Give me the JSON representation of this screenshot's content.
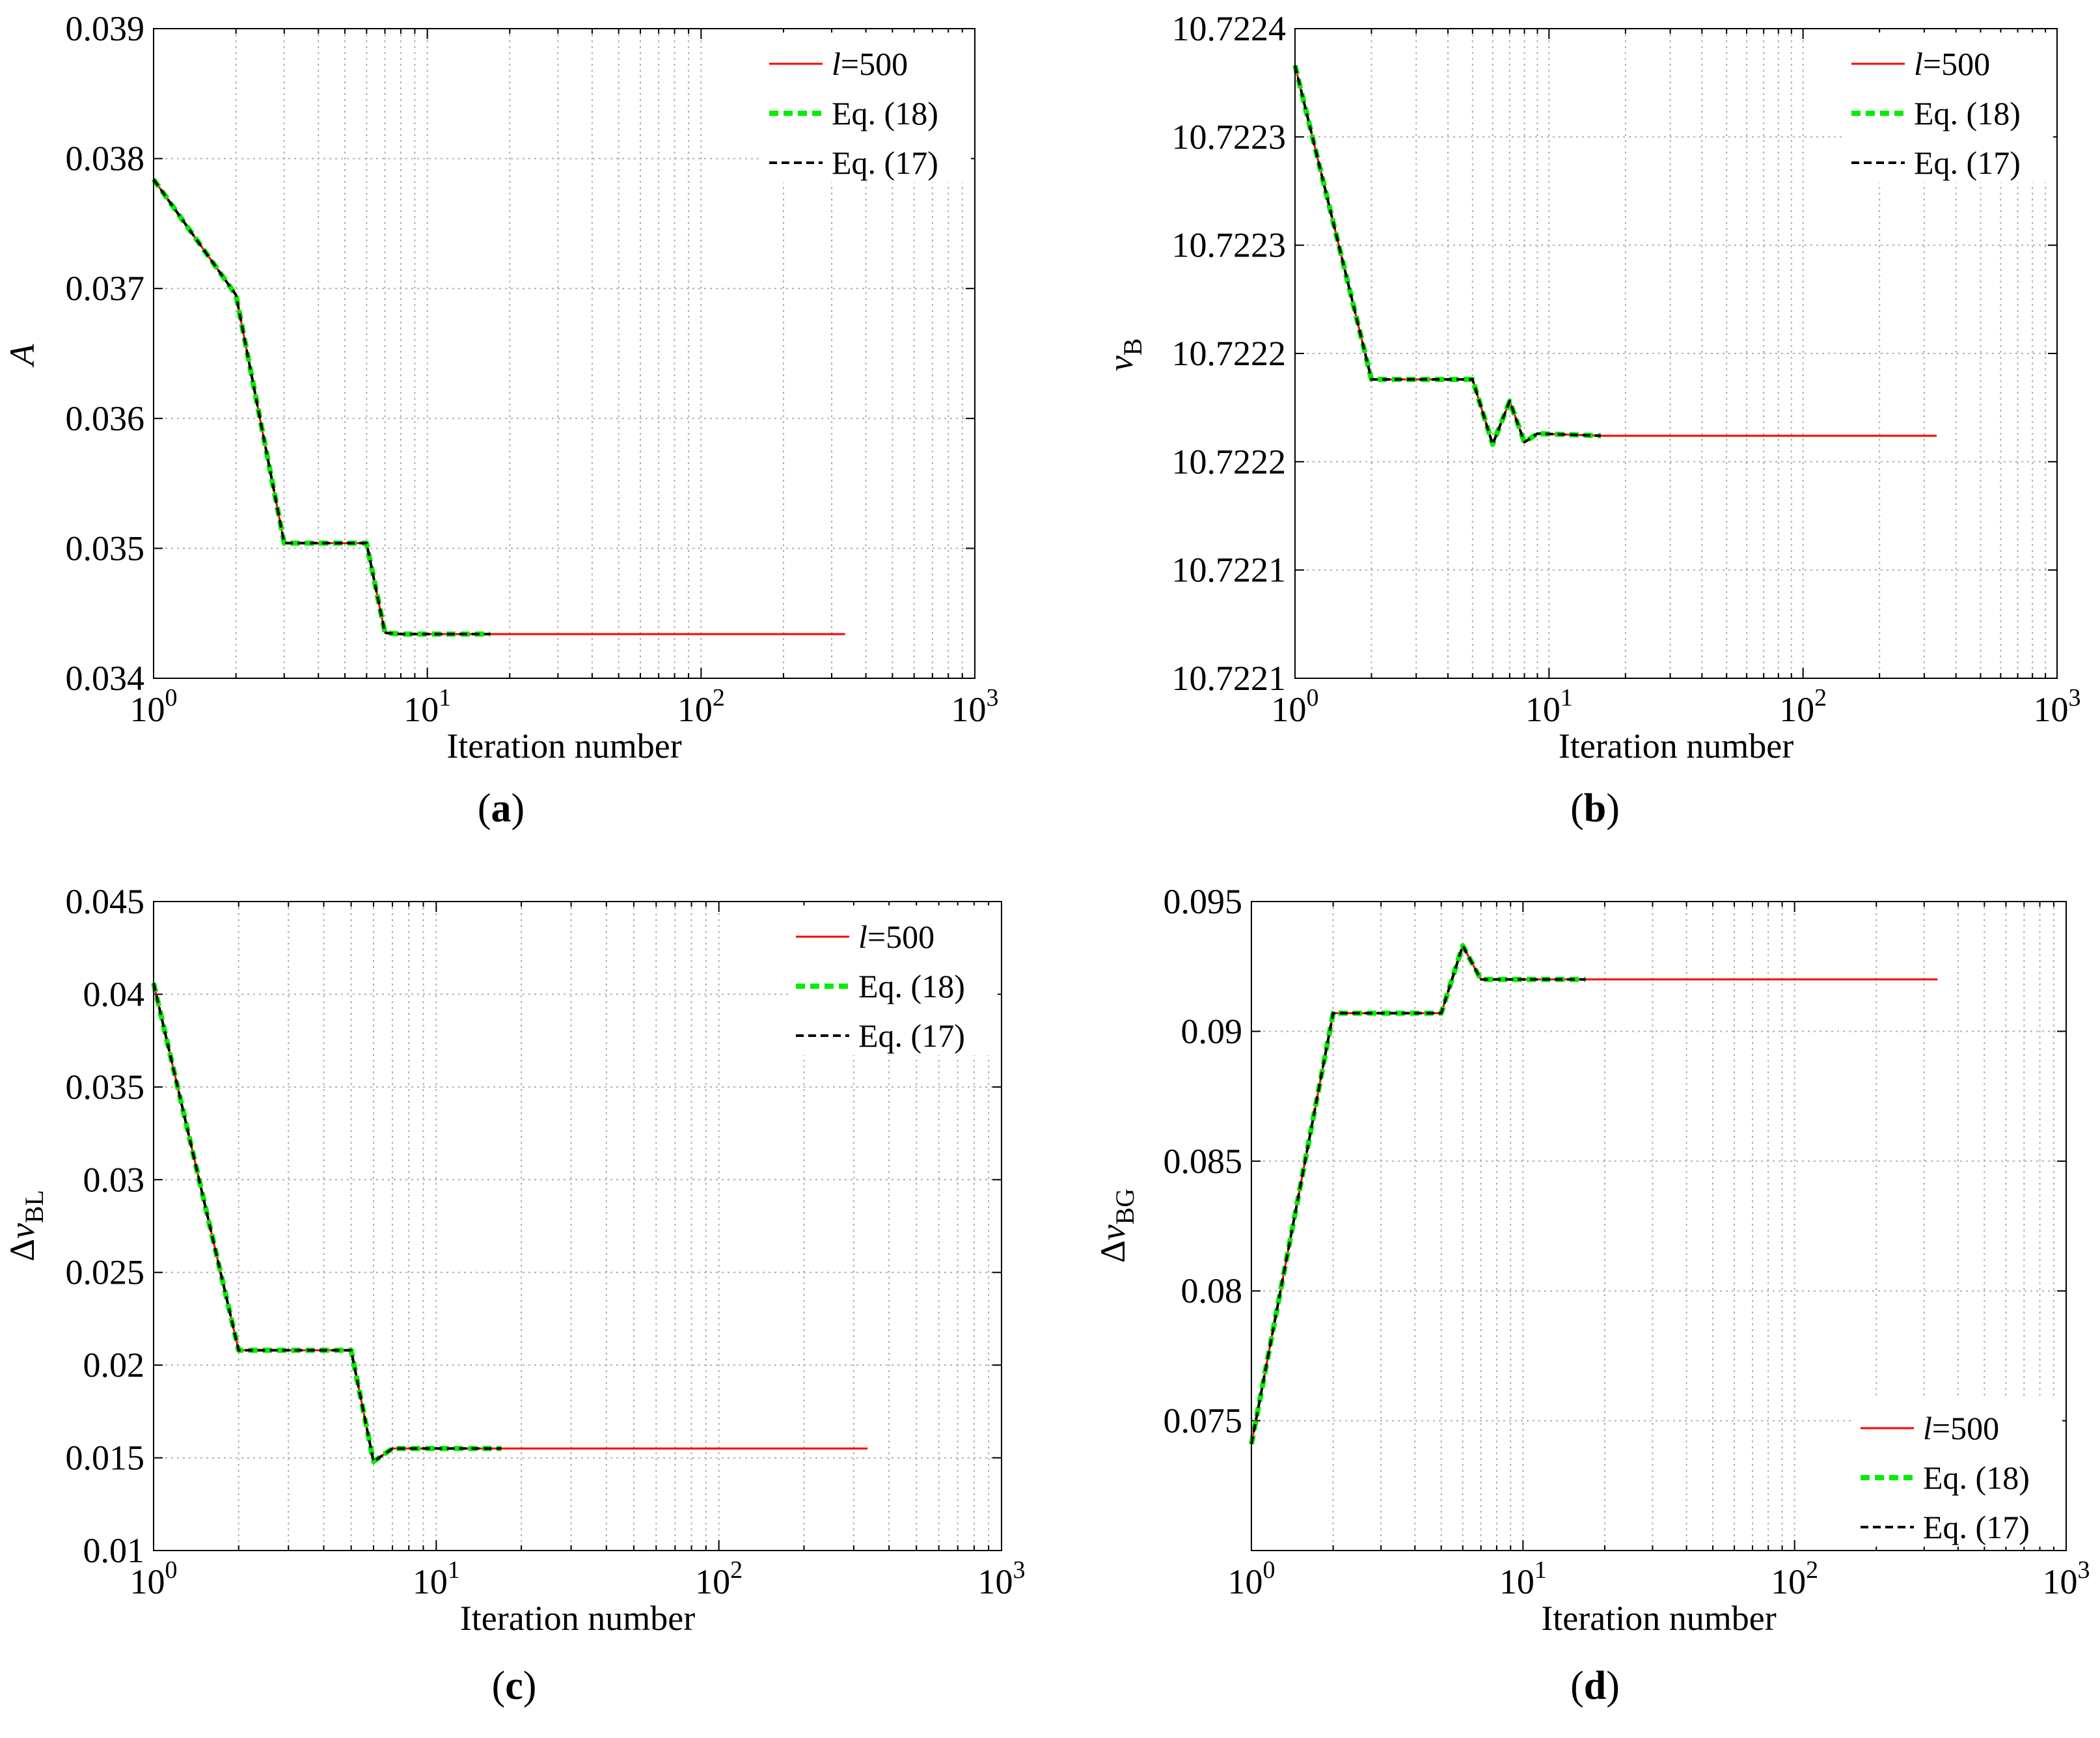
{
  "chart_data": [
    {
      "id": "a",
      "type": "line",
      "x_scale": "log",
      "xlim": [
        1,
        1000
      ],
      "ylim": [
        0.034,
        0.039
      ],
      "y_ticks": [
        0.034,
        0.035,
        0.036,
        0.037,
        0.038,
        0.039
      ],
      "y_tick_labels": [
        "0.034",
        "0.035",
        "0.036",
        "0.037",
        "0.038",
        "0.039"
      ],
      "x_tick_exponents": [
        "0",
        "1",
        "2",
        "3"
      ],
      "x_tick_base": "10",
      "xlabel": "Iteration number",
      "ylabel": "A",
      "ylabel_sub": "",
      "ylabel_prefix": "",
      "panel_label": "a",
      "legend_position": "top-right",
      "legend": [
        {
          "name": "l=500",
          "italic_prefix": "l",
          "rest": "=500",
          "color": "#ff0000",
          "style": "solid"
        },
        {
          "name": "Eq. (18)",
          "italic_prefix": "",
          "rest": "Eq. (18)",
          "color": "#00ee00",
          "style": "dashed"
        },
        {
          "name": "Eq. (17)",
          "italic_prefix": "",
          "rest": "Eq. (17)",
          "color": "#000000",
          "style": "dashed"
        }
      ],
      "series": [
        {
          "name": "l=500",
          "color": "#ff0000",
          "x": [
            1,
            2,
            3,
            6,
            7,
            8,
            17,
            336
          ],
          "y": [
            0.03784,
            0.03695,
            0.03504,
            0.03504,
            0.03435,
            0.03434,
            0.03434,
            0.03434
          ]
        },
        {
          "name": "Eq. (18)",
          "color": "#00ee00",
          "x": [
            1,
            2,
            3,
            6,
            7,
            8,
            17
          ],
          "y": [
            0.03784,
            0.03695,
            0.03504,
            0.03504,
            0.03435,
            0.03434,
            0.03434
          ]
        },
        {
          "name": "Eq. (17)",
          "color": "#000000",
          "x": [
            1,
            2,
            3,
            6,
            7,
            8,
            17
          ],
          "y": [
            0.03784,
            0.03695,
            0.03504,
            0.03504,
            0.03435,
            0.03434,
            0.03434
          ]
        }
      ]
    },
    {
      "id": "b",
      "type": "line",
      "x_scale": "log",
      "xlim": [
        1,
        1000
      ],
      "ylim": [
        10.72206,
        10.72236
      ],
      "y_ticks": [
        10.72206,
        10.72211,
        10.72216,
        10.72221,
        10.72226,
        10.72231,
        10.72236
      ],
      "y_tick_labels": [
        "10.7221",
        "10.7221",
        "10.7222",
        "10.7222",
        "10.7223",
        "10.7223",
        "10.7224"
      ],
      "x_tick_exponents": [
        "0",
        "1",
        "2",
        "3"
      ],
      "x_tick_base": "10",
      "xlabel": "Iteration number",
      "ylabel": "v",
      "ylabel_sub": "B",
      "ylabel_prefix": "",
      "panel_label": "b",
      "legend_position": "top-right",
      "legend": [
        {
          "name": "l=500",
          "italic_prefix": "l",
          "rest": "=500",
          "color": "#ff0000",
          "style": "solid"
        },
        {
          "name": "Eq. (18)",
          "italic_prefix": "",
          "rest": "Eq. (18)",
          "color": "#00ee00",
          "style": "dashed"
        },
        {
          "name": "Eq. (17)",
          "italic_prefix": "",
          "rest": "Eq. (17)",
          "color": "#000000",
          "style": "dashed"
        }
      ],
      "series": [
        {
          "name": "l=500",
          "color": "#ff0000",
          "x": [
            1,
            2,
            5,
            6,
            7,
            8,
            9,
            16,
            336
          ],
          "y": [
            10.722343,
            10.722198,
            10.722198,
            10.722168,
            10.722188,
            10.722169,
            10.722173,
            10.722172,
            10.722172
          ]
        },
        {
          "name": "Eq. (18)",
          "color": "#00ee00",
          "x": [
            1,
            2,
            5,
            6,
            7,
            8,
            9,
            16
          ],
          "y": [
            10.722343,
            10.722198,
            10.722198,
            10.722168,
            10.722188,
            10.722169,
            10.722173,
            10.722172
          ]
        },
        {
          "name": "Eq. (17)",
          "color": "#000000",
          "x": [
            1,
            2,
            5,
            6,
            7,
            8,
            9,
            16
          ],
          "y": [
            10.722343,
            10.722198,
            10.722198,
            10.722168,
            10.722188,
            10.722169,
            10.722173,
            10.722172
          ]
        }
      ]
    },
    {
      "id": "c",
      "type": "line",
      "x_scale": "log",
      "xlim": [
        1,
        1000
      ],
      "ylim": [
        0.01,
        0.045
      ],
      "y_ticks": [
        0.01,
        0.015,
        0.02,
        0.025,
        0.03,
        0.035,
        0.04,
        0.045
      ],
      "y_tick_labels": [
        "0.01",
        "0.015",
        "0.02",
        "0.025",
        "0.03",
        "0.035",
        "0.04",
        "0.045"
      ],
      "x_tick_exponents": [
        "0",
        "1",
        "2",
        "3"
      ],
      "x_tick_base": "10",
      "xlabel": "Iteration number",
      "ylabel": "v",
      "ylabel_sub": "BL",
      "ylabel_prefix": "Δ",
      "panel_label": "c",
      "legend_position": "top-right",
      "legend": [
        {
          "name": "l=500",
          "italic_prefix": "l",
          "rest": "=500",
          "color": "#ff0000",
          "style": "solid"
        },
        {
          "name": "Eq. (18)",
          "italic_prefix": "",
          "rest": "Eq. (18)",
          "color": "#00ee00",
          "style": "dashed"
        },
        {
          "name": "Eq. (17)",
          "italic_prefix": "",
          "rest": "Eq. (17)",
          "color": "#000000",
          "style": "dashed"
        }
      ],
      "series": [
        {
          "name": "l=500",
          "color": "#ff0000",
          "x": [
            1,
            2,
            5,
            6,
            7,
            17,
            336
          ],
          "y": [
            0.0406,
            0.0208,
            0.0208,
            0.0148,
            0.0155,
            0.0155,
            0.0155
          ]
        },
        {
          "name": "Eq. (18)",
          "color": "#00ee00",
          "x": [
            1,
            2,
            5,
            6,
            7,
            17
          ],
          "y": [
            0.0406,
            0.0208,
            0.0208,
            0.0148,
            0.0155,
            0.0155
          ]
        },
        {
          "name": "Eq. (17)",
          "color": "#000000",
          "x": [
            1,
            2,
            5,
            6,
            7,
            17
          ],
          "y": [
            0.0406,
            0.0208,
            0.0208,
            0.0148,
            0.0155,
            0.0155
          ]
        }
      ]
    },
    {
      "id": "d",
      "type": "line",
      "x_scale": "log",
      "xlim": [
        1,
        1000
      ],
      "ylim": [
        0.07,
        0.095
      ],
      "y_ticks": [
        0.075,
        0.08,
        0.085,
        0.09,
        0.095
      ],
      "y_tick_labels": [
        "0.075",
        "0.08",
        "0.085",
        "0.09",
        "0.095"
      ],
      "x_tick_exponents": [
        "0",
        "1",
        "2",
        "3"
      ],
      "x_tick_base": "10",
      "xlabel": "Iteration number",
      "ylabel": "v",
      "ylabel_sub": "BG",
      "ylabel_prefix": "Δ",
      "panel_label": "d",
      "legend_position": "bottom-right",
      "legend": [
        {
          "name": "l=500",
          "italic_prefix": "l",
          "rest": "=500",
          "color": "#ff0000",
          "style": "solid"
        },
        {
          "name": "Eq. (18)",
          "italic_prefix": "",
          "rest": "Eq. (18)",
          "color": "#00ee00",
          "style": "dashed"
        },
        {
          "name": "Eq. (17)",
          "italic_prefix": "",
          "rest": "Eq. (17)",
          "color": "#000000",
          "style": "dashed"
        }
      ],
      "series": [
        {
          "name": "l=500",
          "color": "#ff0000",
          "x": [
            1,
            2,
            5,
            6,
            7,
            17,
            336
          ],
          "y": [
            0.0741,
            0.0907,
            0.0907,
            0.0933,
            0.092,
            0.092,
            0.092
          ]
        },
        {
          "name": "Eq. (18)",
          "color": "#00ee00",
          "x": [
            1,
            2,
            5,
            6,
            7,
            17
          ],
          "y": [
            0.0741,
            0.0907,
            0.0907,
            0.0933,
            0.092,
            0.092
          ]
        },
        {
          "name": "Eq. (17)",
          "color": "#000000",
          "x": [
            1,
            2,
            5,
            6,
            7,
            17
          ],
          "y": [
            0.0741,
            0.0907,
            0.0907,
            0.0933,
            0.092,
            0.092
          ]
        }
      ]
    }
  ]
}
